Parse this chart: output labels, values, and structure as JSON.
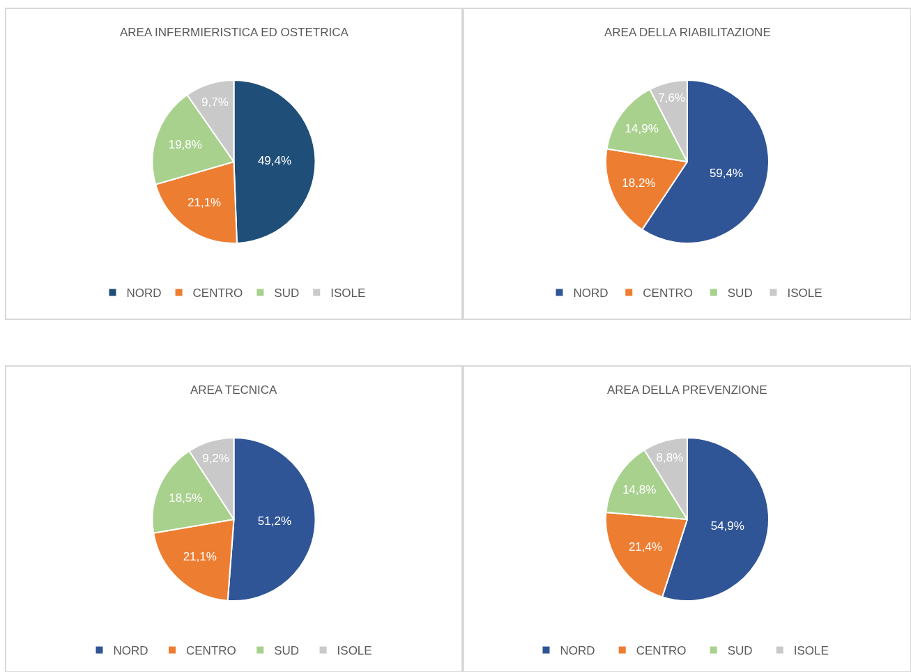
{
  "chart_data": [
    {
      "type": "pie",
      "title": "AREA INFERMIERISTICA ED OSTETRICA",
      "categories": [
        "NORD",
        "CENTRO",
        "SUD",
        "ISOLE"
      ],
      "values": [
        49.4,
        21.1,
        19.8,
        9.7
      ],
      "colors": [
        "#1f4e79",
        "#ed7d31",
        "#a9d18e",
        "#c9c9c9"
      ],
      "value_labels": [
        "49,4%",
        "21,1%",
        "19,8%",
        "9,7%"
      ],
      "legend": "bottom"
    },
    {
      "type": "pie",
      "title": "AREA DELLA RIABILITAZIONE",
      "categories": [
        "NORD",
        "CENTRO",
        "SUD",
        "ISOLE"
      ],
      "values": [
        59.4,
        18.2,
        14.9,
        7.6
      ],
      "colors": [
        "#2f5597",
        "#ed7d31",
        "#a9d18e",
        "#c9c9c9"
      ],
      "value_labels": [
        "59,4%",
        "18,2%",
        "14,9%",
        "7,6%"
      ],
      "legend": "bottom"
    },
    {
      "type": "pie",
      "title": "AREA TECNICA",
      "categories": [
        "NORD",
        "CENTRO",
        "SUD",
        "ISOLE"
      ],
      "values": [
        51.2,
        21.1,
        18.5,
        9.2
      ],
      "colors": [
        "#2f5597",
        "#ed7d31",
        "#a9d18e",
        "#c9c9c9"
      ],
      "value_labels": [
        "51,2%",
        "21,1%",
        "18,5%",
        "9,2%"
      ],
      "legend": "bottom"
    },
    {
      "type": "pie",
      "title": "AREA DELLA PREVENZIONE",
      "categories": [
        "NORD",
        "CENTRO",
        "SUD",
        "ISOLE"
      ],
      "values": [
        54.9,
        21.4,
        14.8,
        8.8
      ],
      "colors": [
        "#2f5597",
        "#ed7d31",
        "#a9d18e",
        "#c9c9c9"
      ],
      "value_labels": [
        "54,9%",
        "21,4%",
        "14,8%",
        "8,8%"
      ],
      "legend": "bottom"
    }
  ]
}
